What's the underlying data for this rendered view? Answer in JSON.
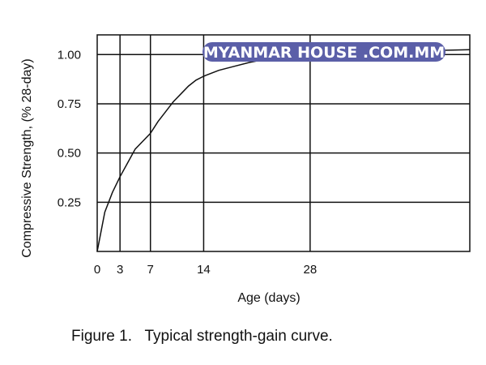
{
  "chart_data": {
    "type": "line",
    "xlabel": "Age (days)",
    "ylabel": "Compressive Strength, (% 28-day)",
    "x_ticks": [
      0,
      3,
      7,
      14,
      28
    ],
    "y_ticks": [
      0.25,
      0.5,
      0.75,
      1.0
    ],
    "y_tick_labels": [
      "0.25",
      "0.50",
      "0.75",
      "1.00"
    ],
    "xlim": [
      0,
      49
    ],
    "ylim": [
      0,
      1.1
    ],
    "grid": true,
    "series": [
      {
        "x": [
          0,
          0.5,
          1,
          2,
          3,
          4,
          5,
          6,
          7,
          8,
          9,
          10,
          11,
          12,
          13,
          14,
          16,
          18,
          20,
          22,
          25,
          28,
          32,
          36,
          40,
          44,
          49
        ],
        "y": [
          0,
          0.1,
          0.2,
          0.3,
          0.38,
          0.45,
          0.52,
          0.56,
          0.6,
          0.66,
          0.71,
          0.76,
          0.8,
          0.84,
          0.87,
          0.89,
          0.92,
          0.94,
          0.96,
          0.975,
          0.99,
          1.0,
          1.005,
          1.01,
          1.015,
          1.02,
          1.025
        ]
      }
    ]
  },
  "caption": "Figure 1.   Typical strength-gain curve.",
  "watermark": "MYANMAR HOUSE .COM.MM",
  "colors": {
    "line": "#111111",
    "grid": "#111111",
    "watermark_bg": "#5b5fa8"
  }
}
